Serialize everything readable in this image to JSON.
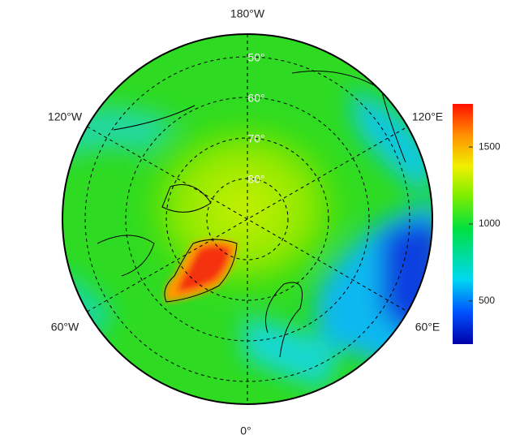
{
  "longitude_labels": [
    "180°W",
    "120°W",
    "120°E",
    "60°W",
    "60°E",
    "0°"
  ],
  "latitude_labels": [
    "50°",
    "60°",
    "70°",
    "80°"
  ],
  "colorbar": {
    "lim": [
      220,
      1780
    ],
    "ticks": [
      500,
      1000,
      1500
    ]
  }
}
